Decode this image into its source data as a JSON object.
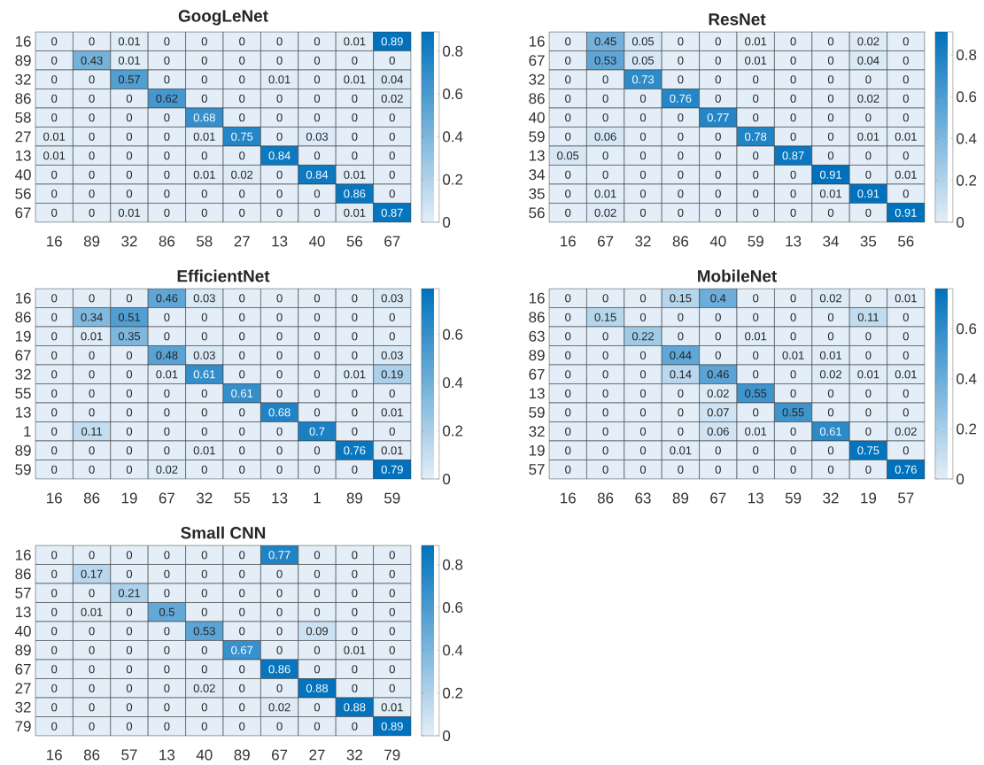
{
  "chart_data": [
    {
      "type": "heatmap",
      "title": "GoogLeNet",
      "categories": [
        "16",
        "89",
        "32",
        "86",
        "58",
        "27",
        "13",
        "40",
        "56",
        "67"
      ],
      "y_categories": [
        "16",
        "89",
        "32",
        "86",
        "58",
        "27",
        "13",
        "40",
        "56",
        "67"
      ],
      "cells": [
        [
          0,
          0,
          0.01,
          0,
          0,
          0,
          0,
          0,
          0.01,
          0.89
        ],
        [
          0,
          0.43,
          0.01,
          0,
          0,
          0,
          0,
          0,
          0,
          0
        ],
        [
          0,
          0,
          0.57,
          0,
          0,
          0,
          0.01,
          0,
          0.01,
          0.04
        ],
        [
          0,
          0,
          0,
          0.62,
          0,
          0,
          0,
          0,
          0,
          0.02
        ],
        [
          0,
          0,
          0,
          0,
          0.68,
          0,
          0,
          0,
          0,
          0
        ],
        [
          0.01,
          0,
          0,
          0,
          0.01,
          0.75,
          0,
          0.03,
          0,
          0
        ],
        [
          0.01,
          0,
          0,
          0,
          0,
          0,
          0.84,
          0,
          0,
          0
        ],
        [
          0,
          0,
          0,
          0,
          0.01,
          0.02,
          0,
          0.84,
          0.01,
          0
        ],
        [
          0,
          0,
          0,
          0,
          0,
          0,
          0,
          0,
          0.86,
          0
        ],
        [
          0,
          0,
          0.01,
          0,
          0,
          0,
          0,
          0,
          0.01,
          0.87
        ]
      ],
      "clim": [
        0,
        0.89
      ],
      "cticks": [
        0,
        0.2,
        0.4,
        0.6,
        0.8
      ],
      "data_labels": true
    },
    {
      "type": "heatmap",
      "title": "ResNet",
      "categories": [
        "16",
        "67",
        "32",
        "86",
        "40",
        "59",
        "13",
        "34",
        "35",
        "56"
      ],
      "y_categories": [
        "16",
        "67",
        "32",
        "86",
        "40",
        "59",
        "13",
        "34",
        "35",
        "56"
      ],
      "cells": [
        [
          0,
          0.45,
          0.05,
          0,
          0,
          0.01,
          0,
          0,
          0.02,
          0
        ],
        [
          0,
          0.53,
          0.05,
          0,
          0,
          0.01,
          0,
          0,
          0.04,
          0
        ],
        [
          0,
          0,
          0.73,
          0,
          0,
          0,
          0,
          0,
          0,
          0
        ],
        [
          0,
          0,
          0,
          0.76,
          0,
          0,
          0,
          0,
          0.02,
          0
        ],
        [
          0,
          0,
          0,
          0,
          0.77,
          0,
          0,
          0,
          0,
          0
        ],
        [
          0,
          0.06,
          0,
          0,
          0,
          0.78,
          0,
          0,
          0.01,
          0.01
        ],
        [
          0.05,
          0,
          0,
          0,
          0,
          0,
          0.87,
          0,
          0,
          0
        ],
        [
          0,
          0,
          0,
          0,
          0,
          0,
          0,
          0.91,
          0,
          0.01
        ],
        [
          0,
          0.01,
          0,
          0,
          0,
          0,
          0,
          0.01,
          0.91,
          0
        ],
        [
          0,
          0.02,
          0,
          0,
          0,
          0,
          0,
          0,
          0,
          0.91
        ]
      ],
      "clim": [
        0,
        0.91
      ],
      "cticks": [
        0,
        0.2,
        0.4,
        0.6,
        0.8
      ],
      "data_labels": true
    },
    {
      "type": "heatmap",
      "title": "EfficientNet",
      "categories": [
        "16",
        "86",
        "19",
        "67",
        "32",
        "55",
        "13",
        "1",
        "89",
        "59"
      ],
      "y_categories": [
        "16",
        "86",
        "19",
        "67",
        "32",
        "55",
        "13",
        "1",
        "89",
        "59"
      ],
      "cells": [
        [
          0,
          0,
          0,
          0.46,
          0.03,
          0,
          0,
          0,
          0,
          0.03
        ],
        [
          0,
          0.34,
          0.51,
          0,
          0,
          0,
          0,
          0,
          0,
          0
        ],
        [
          0,
          0.01,
          0.35,
          0,
          0,
          0,
          0,
          0,
          0,
          0
        ],
        [
          0,
          0,
          0,
          0.48,
          0.03,
          0,
          0,
          0,
          0,
          0.03
        ],
        [
          0,
          0,
          0,
          0.01,
          0.61,
          0,
          0,
          0,
          0.01,
          0.19
        ],
        [
          0,
          0,
          0,
          0,
          0,
          0.61,
          0,
          0,
          0,
          0
        ],
        [
          0,
          0,
          0,
          0,
          0,
          0,
          0.68,
          0,
          0,
          0.01
        ],
        [
          0,
          0.11,
          0,
          0,
          0,
          0,
          0,
          0.7,
          0,
          0
        ],
        [
          0,
          0,
          0,
          0,
          0.01,
          0,
          0,
          0,
          0.76,
          0.01
        ],
        [
          0,
          0,
          0,
          0.02,
          0,
          0,
          0,
          0,
          0,
          0.79
        ]
      ],
      "clim": [
        0,
        0.79
      ],
      "cticks": [
        0,
        0.2,
        0.4,
        0.6
      ],
      "data_labels": true
    },
    {
      "type": "heatmap",
      "title": "MobileNet",
      "categories": [
        "16",
        "86",
        "63",
        "89",
        "67",
        "13",
        "59",
        "32",
        "19",
        "57"
      ],
      "y_categories": [
        "16",
        "86",
        "63",
        "89",
        "67",
        "13",
        "59",
        "32",
        "19",
        "57"
      ],
      "cells": [
        [
          0,
          0,
          0,
          0.15,
          0.4,
          0,
          0,
          0.02,
          0,
          0.01
        ],
        [
          0,
          0.15,
          0,
          0,
          0,
          0,
          0,
          0,
          0.11,
          0
        ],
        [
          0,
          0,
          0.22,
          0,
          0,
          0.01,
          0,
          0,
          0,
          0
        ],
        [
          0,
          0,
          0,
          0.44,
          0,
          0,
          0.01,
          0.01,
          0,
          0
        ],
        [
          0,
          0,
          0,
          0.14,
          0.46,
          0,
          0,
          0.02,
          0.01,
          0.01
        ],
        [
          0,
          0,
          0,
          0,
          0.02,
          0.55,
          0,
          0,
          0,
          0
        ],
        [
          0,
          0,
          0,
          0,
          0.07,
          0,
          0.55,
          0,
          0,
          0
        ],
        [
          0,
          0,
          0,
          0,
          0.06,
          0.01,
          0,
          0.61,
          0,
          0.02
        ],
        [
          0,
          0,
          0,
          0.01,
          0,
          0,
          0,
          0,
          0.75,
          0
        ],
        [
          0,
          0,
          0,
          0,
          0,
          0,
          0,
          0,
          0,
          0.76
        ]
      ],
      "clim": [
        0,
        0.76
      ],
      "cticks": [
        0,
        0.2,
        0.4,
        0.6
      ],
      "data_labels": true
    },
    {
      "type": "heatmap",
      "title": "Small CNN",
      "categories": [
        "16",
        "86",
        "57",
        "13",
        "40",
        "89",
        "67",
        "27",
        "32",
        "79"
      ],
      "y_categories": [
        "16",
        "86",
        "57",
        "13",
        "40",
        "89",
        "67",
        "27",
        "32",
        "79"
      ],
      "cells": [
        [
          0,
          0,
          0,
          0,
          0,
          0,
          0.77,
          0,
          0,
          0
        ],
        [
          0,
          0.17,
          0,
          0,
          0,
          0,
          0,
          0,
          0,
          0
        ],
        [
          0,
          0,
          0.21,
          0,
          0,
          0,
          0,
          0,
          0,
          0
        ],
        [
          0,
          0.01,
          0,
          0.5,
          0,
          0,
          0,
          0,
          0,
          0
        ],
        [
          0,
          0,
          0,
          0,
          0.53,
          0,
          0,
          0.09,
          0,
          0
        ],
        [
          0,
          0,
          0,
          0,
          0,
          0.67,
          0,
          0,
          0.01,
          0
        ],
        [
          0,
          0,
          0,
          0,
          0,
          0,
          0.86,
          0,
          0,
          0
        ],
        [
          0,
          0,
          0,
          0,
          0.02,
          0,
          0,
          0.88,
          0,
          0
        ],
        [
          0,
          0,
          0,
          0,
          0,
          0,
          0.02,
          0,
          0.88,
          0.01
        ],
        [
          0,
          0,
          0,
          0,
          0,
          0,
          0,
          0,
          0,
          0.89
        ]
      ],
      "clim": [
        0,
        0.89
      ],
      "cticks": [
        0,
        0.2,
        0.4,
        0.6,
        0.8
      ],
      "data_labels": true
    }
  ]
}
